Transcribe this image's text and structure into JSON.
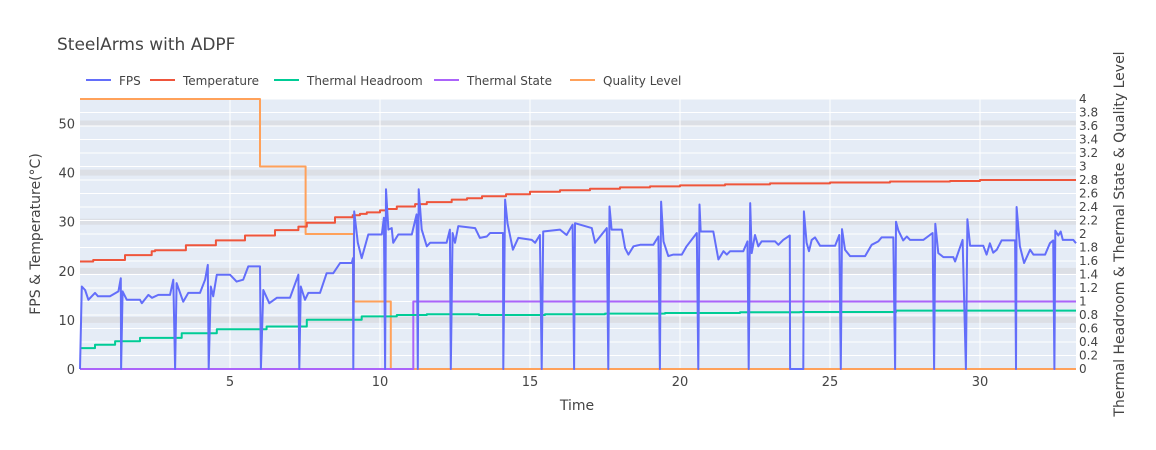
{
  "chart_data": {
    "type": "line",
    "title": "SteelArms with ADPF",
    "xlabel": "Time",
    "ylabel_left": "FPS & Temperature(°C)",
    "ylabel_right": "Thermal Headroom & Thermal State & Quality Level",
    "xlim": [
      0,
      33.2
    ],
    "ylim_left": [
      0,
      55
    ],
    "ylim_right": [
      0,
      4
    ],
    "x_ticks": [
      5,
      10,
      15,
      20,
      25,
      30
    ],
    "y_ticks_left": [
      0,
      10,
      20,
      30,
      40,
      50
    ],
    "y_ticks_right": [
      "0",
      "0.2",
      "0.4",
      "0.6",
      "0.8",
      "1",
      "1.2",
      "1.4",
      "1.6",
      "1.8",
      "2",
      "2.2",
      "2.4",
      "2.6",
      "2.8",
      "3",
      "3.2",
      "3.4",
      "3.6",
      "3.8",
      "4"
    ],
    "grid": true,
    "legend_position": "top-left horizontal",
    "series": [
      {
        "name": "FPS",
        "axis": "left",
        "color": "#636efa",
        "shape": "linear",
        "points": [
          [
            0,
            0
          ],
          [
            0.06,
            16.8
          ],
          [
            0.17,
            16.1
          ],
          [
            0.28,
            14.1
          ],
          [
            0.5,
            15.5
          ],
          [
            0.6,
            14.8
          ],
          [
            1.0,
            14.8
          ],
          [
            1.28,
            15.8
          ],
          [
            1.36,
            18.5
          ],
          [
            1.37,
            0
          ],
          [
            1.42,
            15.8
          ],
          [
            1.56,
            14.1
          ],
          [
            2.0,
            14.1
          ],
          [
            2.06,
            13.4
          ],
          [
            2.28,
            15.1
          ],
          [
            2.4,
            14.5
          ],
          [
            2.61,
            15.1
          ],
          [
            3.0,
            15.1
          ],
          [
            3.11,
            18.2
          ],
          [
            3.17,
            0
          ],
          [
            3.22,
            17.5
          ],
          [
            3.44,
            13.7
          ],
          [
            3.61,
            15.5
          ],
          [
            4.0,
            15.5
          ],
          [
            4.17,
            18.2
          ],
          [
            4.26,
            21.2
          ],
          [
            4.29,
            0
          ],
          [
            4.36,
            16.8
          ],
          [
            4.44,
            14.8
          ],
          [
            4.56,
            19.2
          ],
          [
            5.0,
            19.2
          ],
          [
            5.22,
            17.8
          ],
          [
            5.44,
            18.2
          ],
          [
            5.61,
            20.9
          ],
          [
            6.0,
            20.9
          ],
          [
            6.03,
            0
          ],
          [
            6.11,
            16.1
          ],
          [
            6.31,
            13.4
          ],
          [
            6.56,
            14.5
          ],
          [
            7.0,
            14.5
          ],
          [
            7.28,
            19.2
          ],
          [
            7.31,
            0
          ],
          [
            7.36,
            16.8
          ],
          [
            7.5,
            14.1
          ],
          [
            7.61,
            15.5
          ],
          [
            8.0,
            15.5
          ],
          [
            8.22,
            19.5
          ],
          [
            8.44,
            19.5
          ],
          [
            8.67,
            21.6
          ],
          [
            9.06,
            21.6
          ],
          [
            9.1,
            22.6
          ],
          [
            9.11,
            0
          ],
          [
            9.14,
            32.1
          ],
          [
            9.26,
            25.7
          ],
          [
            9.39,
            22.6
          ],
          [
            9.61,
            27.4
          ],
          [
            10.06,
            27.4
          ],
          [
            10.13,
            30.8
          ],
          [
            10.17,
            0
          ],
          [
            10.2,
            36.6
          ],
          [
            10.28,
            28.4
          ],
          [
            10.39,
            28.7
          ],
          [
            10.44,
            25.7
          ],
          [
            10.61,
            27.4
          ],
          [
            11.06,
            27.4
          ],
          [
            11.22,
            31.5
          ],
          [
            11.26,
            0
          ],
          [
            11.29,
            36.6
          ],
          [
            11.39,
            28.4
          ],
          [
            11.56,
            25.0
          ],
          [
            11.67,
            25.7
          ],
          [
            12.22,
            25.7
          ],
          [
            12.33,
            28.4
          ],
          [
            12.36,
            0
          ],
          [
            12.42,
            27.7
          ],
          [
            12.5,
            25.7
          ],
          [
            12.61,
            29.1
          ],
          [
            13.17,
            28.7
          ],
          [
            13.33,
            26.7
          ],
          [
            13.56,
            27.0
          ],
          [
            13.67,
            27.7
          ],
          [
            14.1,
            27.7
          ],
          [
            14.11,
            0
          ],
          [
            14.17,
            34.5
          ],
          [
            14.25,
            29.7
          ],
          [
            14.43,
            24.3
          ],
          [
            14.61,
            26.7
          ],
          [
            15.06,
            26.3
          ],
          [
            15.17,
            25.7
          ],
          [
            15.33,
            27.3
          ],
          [
            15.39,
            0
          ],
          [
            15.44,
            28.0
          ],
          [
            16.0,
            28.4
          ],
          [
            16.22,
            27.3
          ],
          [
            16.42,
            29.4
          ],
          [
            16.47,
            0
          ],
          [
            16.5,
            29.7
          ],
          [
            17.06,
            28.7
          ],
          [
            17.17,
            25.7
          ],
          [
            17.56,
            28.7
          ],
          [
            17.61,
            0
          ],
          [
            17.65,
            33.1
          ],
          [
            17.72,
            28.4
          ],
          [
            18.06,
            28.4
          ],
          [
            18.17,
            24.6
          ],
          [
            18.28,
            23.3
          ],
          [
            18.45,
            25.0
          ],
          [
            18.67,
            25.3
          ],
          [
            19.11,
            25.3
          ],
          [
            19.28,
            27.0
          ],
          [
            19.33,
            0
          ],
          [
            19.37,
            34.1
          ],
          [
            19.45,
            26.0
          ],
          [
            19.61,
            23.0
          ],
          [
            19.78,
            23.3
          ],
          [
            20.06,
            23.3
          ],
          [
            20.22,
            25.0
          ],
          [
            20.56,
            27.7
          ],
          [
            20.61,
            0
          ],
          [
            20.65,
            33.5
          ],
          [
            20.69,
            28.0
          ],
          [
            21.11,
            28.0
          ],
          [
            21.28,
            22.3
          ],
          [
            21.45,
            24.0
          ],
          [
            21.56,
            23.3
          ],
          [
            21.67,
            24.0
          ],
          [
            22.11,
            24.0
          ],
          [
            22.25,
            26.0
          ],
          [
            22.29,
            0
          ],
          [
            22.34,
            33.8
          ],
          [
            22.39,
            23.6
          ],
          [
            22.5,
            27.3
          ],
          [
            22.61,
            25.0
          ],
          [
            22.72,
            26.0
          ],
          [
            23.17,
            26.0
          ],
          [
            23.28,
            25.3
          ],
          [
            23.44,
            26.3
          ],
          [
            23.66,
            27.2
          ],
          [
            23.67,
            0
          ],
          [
            24.11,
            0
          ],
          [
            24.13,
            32.1
          ],
          [
            24.22,
            25.7
          ],
          [
            24.3,
            24.0
          ],
          [
            24.39,
            26.3
          ],
          [
            24.5,
            26.8
          ],
          [
            24.67,
            25.1
          ],
          [
            25.17,
            25.1
          ],
          [
            25.31,
            27.3
          ],
          [
            25.36,
            0
          ],
          [
            25.4,
            28.5
          ],
          [
            25.5,
            24.3
          ],
          [
            25.67,
            23.0
          ],
          [
            26.17,
            23.0
          ],
          [
            26.39,
            25.3
          ],
          [
            26.61,
            26.0
          ],
          [
            26.72,
            26.8
          ],
          [
            27.11,
            26.8
          ],
          [
            27.17,
            0
          ],
          [
            27.2,
            30.0
          ],
          [
            27.28,
            28.2
          ],
          [
            27.44,
            26.2
          ],
          [
            27.56,
            27.0
          ],
          [
            27.67,
            26.3
          ],
          [
            28.11,
            26.3
          ],
          [
            28.42,
            27.7
          ],
          [
            28.47,
            0
          ],
          [
            28.51,
            29.6
          ],
          [
            28.61,
            23.6
          ],
          [
            28.78,
            22.8
          ],
          [
            29.11,
            22.8
          ],
          [
            29.17,
            21.9
          ],
          [
            29.42,
            26.3
          ],
          [
            29.53,
            0
          ],
          [
            29.58,
            30.5
          ],
          [
            29.67,
            25.1
          ],
          [
            30.11,
            25.1
          ],
          [
            30.22,
            23.3
          ],
          [
            30.33,
            25.6
          ],
          [
            30.44,
            23.7
          ],
          [
            30.56,
            24.3
          ],
          [
            30.72,
            26.2
          ],
          [
            31.17,
            26.2
          ],
          [
            31.2,
            0
          ],
          [
            31.22,
            33.0
          ],
          [
            31.33,
            25.0
          ],
          [
            31.47,
            21.6
          ],
          [
            31.67,
            24.3
          ],
          [
            31.78,
            23.3
          ],
          [
            32.17,
            23.3
          ],
          [
            32.33,
            25.6
          ],
          [
            32.44,
            26.2
          ],
          [
            32.48,
            0
          ],
          [
            32.51,
            28.2
          ],
          [
            32.61,
            27.2
          ],
          [
            32.69,
            28.0
          ],
          [
            32.76,
            26.3
          ],
          [
            33.11,
            26.3
          ],
          [
            33.2,
            25.6
          ]
        ]
      },
      {
        "name": "Temperature",
        "axis": "left",
        "color": "#ef553b",
        "shape": "step",
        "points": [
          [
            0,
            21.9
          ],
          [
            0.44,
            22.2
          ],
          [
            1.5,
            23.2
          ],
          [
            2.39,
            24.0
          ],
          [
            2.5,
            24.2
          ],
          [
            3.53,
            25.2
          ],
          [
            4.53,
            26.2
          ],
          [
            5.5,
            27.2
          ],
          [
            6.5,
            28.3
          ],
          [
            7.28,
            29.0
          ],
          [
            7.56,
            29.8
          ],
          [
            8.5,
            30.9
          ],
          [
            9.09,
            31.3
          ],
          [
            9.33,
            31.6
          ],
          [
            9.56,
            31.9
          ],
          [
            10.0,
            32.3
          ],
          [
            10.22,
            32.6
          ],
          [
            10.56,
            33.1
          ],
          [
            11.17,
            33.6
          ],
          [
            11.56,
            34.0
          ],
          [
            12.39,
            34.5
          ],
          [
            12.9,
            34.8
          ],
          [
            13.4,
            35.2
          ],
          [
            14.2,
            35.6
          ],
          [
            15.0,
            36.1
          ],
          [
            16.0,
            36.4
          ],
          [
            17.0,
            36.7
          ],
          [
            18.0,
            37.0
          ],
          [
            19.0,
            37.2
          ],
          [
            20.0,
            37.4
          ],
          [
            21.5,
            37.6
          ],
          [
            23.0,
            37.8
          ],
          [
            25.0,
            38.0
          ],
          [
            27.0,
            38.2
          ],
          [
            29.0,
            38.3
          ],
          [
            30.0,
            38.5
          ],
          [
            33.2,
            38.5
          ]
        ]
      },
      {
        "name": "Thermal Headroom",
        "axis": "right",
        "color": "#00cc96",
        "shape": "step",
        "points": [
          [
            0,
            0.31
          ],
          [
            0.5,
            0.36
          ],
          [
            1.17,
            0.41
          ],
          [
            2.0,
            0.46
          ],
          [
            3.39,
            0.53
          ],
          [
            4.56,
            0.59
          ],
          [
            6.22,
            0.63
          ],
          [
            7.56,
            0.73
          ],
          [
            9.39,
            0.78
          ],
          [
            10.56,
            0.8
          ],
          [
            11.56,
            0.81
          ],
          [
            13.3,
            0.8
          ],
          [
            15.5,
            0.81
          ],
          [
            17.5,
            0.82
          ],
          [
            19.5,
            0.83
          ],
          [
            22.0,
            0.84
          ],
          [
            24.0,
            0.845
          ],
          [
            27.2,
            0.865
          ],
          [
            33.2,
            0.865
          ]
        ]
      },
      {
        "name": "Thermal State",
        "axis": "right",
        "color": "#ab63fa",
        "shape": "step",
        "points": [
          [
            0,
            0
          ],
          [
            11.11,
            1
          ],
          [
            33.2,
            1
          ]
        ]
      },
      {
        "name": "Quality Level",
        "axis": "right",
        "color": "#ffa15a",
        "shape": "step",
        "points": [
          [
            0,
            4
          ],
          [
            6.0,
            3
          ],
          [
            7.52,
            2
          ],
          [
            9.13,
            1
          ],
          [
            10.36,
            0
          ],
          [
            33.2,
            0
          ]
        ]
      }
    ]
  }
}
